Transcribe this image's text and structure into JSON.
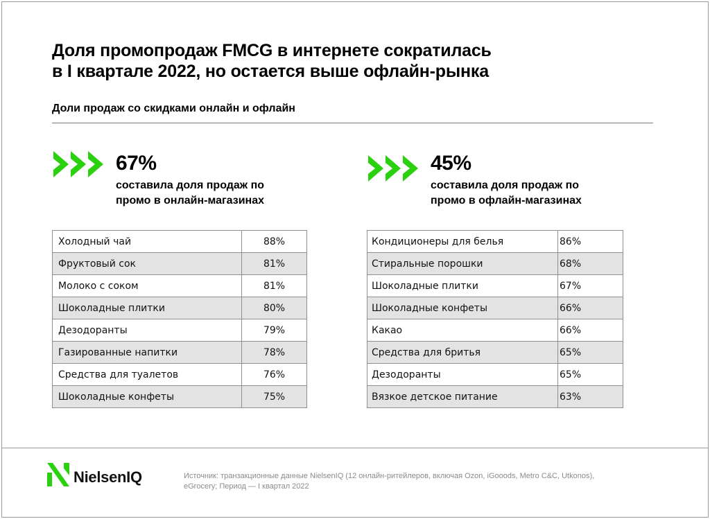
{
  "title_line1": "Доля промопродаж FMCG в интернете сократилась",
  "title_line2": "в I квартале 2022, но остается выше офлайн-рынка",
  "subtitle": "Доли продаж со скидками онлайн и офлайн",
  "colors": {
    "accent": "#2bd10e",
    "row_stripe": "#e3e3e3",
    "border": "#8d8d8d"
  },
  "online": {
    "icon": "triple-chevron-right-icon",
    "value": "67%",
    "caption_line1": "составила доля продаж по",
    "caption_line2": "промо в онлайн-магазинах",
    "rows": [
      {
        "category": "Холодный чай",
        "value": "88%"
      },
      {
        "category": "Фруктовый сок",
        "value": "81%"
      },
      {
        "category": "Молоко с соком",
        "value": "81%"
      },
      {
        "category": "Шоколадные плитки",
        "value": "80%"
      },
      {
        "category": "Дезодоранты",
        "value": "79%"
      },
      {
        "category": "Газированные напитки",
        "value": "78%"
      },
      {
        "category": "Средства для туалетов",
        "value": "76%"
      },
      {
        "category": "Шоколадные конфеты",
        "value": "75%"
      }
    ]
  },
  "offline": {
    "icon": "triple-chevron-right-icon",
    "value": "45%",
    "caption_line1": "составила доля продаж по",
    "caption_line2": "промо в офлайн-магазинах",
    "rows": [
      {
        "category": "Кондиционеры для белья",
        "value": "86%"
      },
      {
        "category": "Стиральные порошки",
        "value": "68%"
      },
      {
        "category": "Шоколадные плитки",
        "value": "67%"
      },
      {
        "category": "Шоколадные конфеты",
        "value": "66%"
      },
      {
        "category": "Какао",
        "value": "66%"
      },
      {
        "category": "Средства для бритья",
        "value": "65%"
      },
      {
        "category": "Дезодоранты",
        "value": "65%"
      },
      {
        "category": "Вязкое детское питание",
        "value": "63%"
      }
    ]
  },
  "footer": {
    "logo_text": "NielsenIQ",
    "logo_icon": "nielseniq-logo-icon",
    "source_line1": "Источник: транзакционные данные NielsenIQ (12 онлайн-ритейлеров, включая Ozon, iGooods, Metro C&C, Utkonos),",
    "source_line2": "eGrocery; Период — I квартал 2022"
  }
}
